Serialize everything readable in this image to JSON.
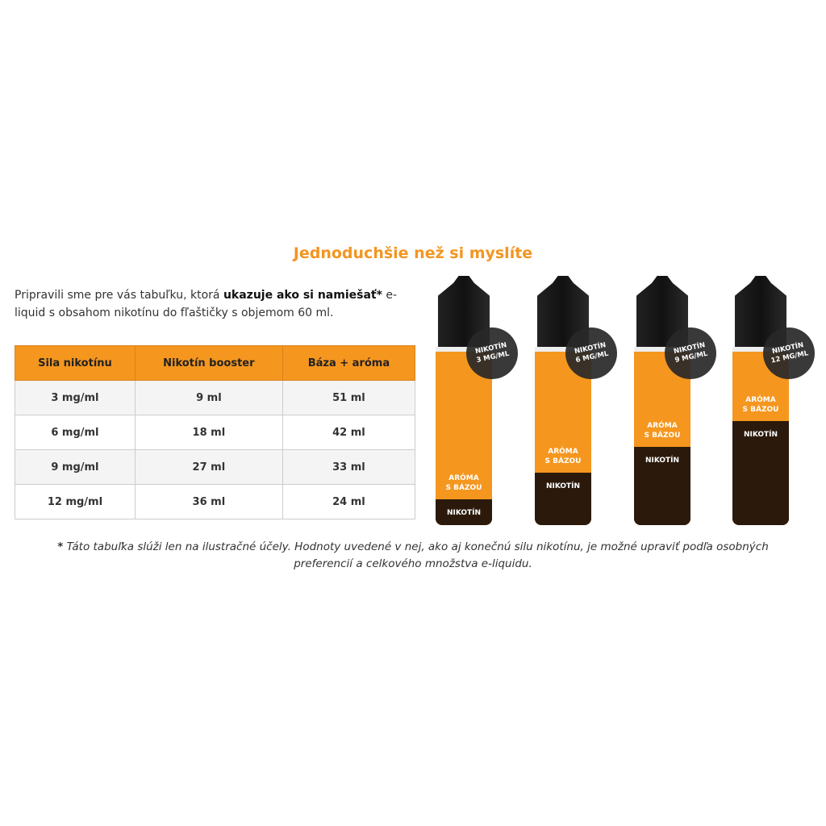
{
  "title": "Jednoduchšie než si myslíte",
  "intro": {
    "before": "Pripravili sme pre vás tabuľku, ktorá ",
    "bold": "ukazuje ako si namiešať*",
    "after": " e-liquid s obsahom nikotínu do fľaštičky s objemom 60 ml."
  },
  "table": {
    "headers": [
      "Sila nikotínu",
      "Nikotín booster",
      "Báza + aróma"
    ],
    "rows": [
      [
        "3 mg/ml",
        "9 ml",
        "51 ml"
      ],
      [
        "6 mg/ml",
        "18 ml",
        "42 ml"
      ],
      [
        "9 mg/ml",
        "27 ml",
        "33 ml"
      ],
      [
        "12 mg/ml",
        "36 ml",
        "24 ml"
      ]
    ]
  },
  "bottles": [
    {
      "badge_line1": "NIKOTÍN",
      "badge_line2": "3 MG/ML",
      "aroma_line1": "ARÓMA",
      "aroma_line2": "S BÁZOU",
      "nicotine": "NIKOTÍN",
      "nicotine_fraction": 0.15
    },
    {
      "badge_line1": "NIKOTÍN",
      "badge_line2": "6 MG/ML",
      "aroma_line1": "ARÓMA",
      "aroma_line2": "S BÁZOU",
      "nicotine": "NIKOTÍN",
      "nicotine_fraction": 0.3
    },
    {
      "badge_line1": "NIKOTÍN",
      "badge_line2": "9 MG/ML",
      "aroma_line1": "ARÓMA",
      "aroma_line2": "S BÁZOU",
      "nicotine": "NIKOTÍN",
      "nicotine_fraction": 0.45
    },
    {
      "badge_line1": "NIKOTÍN",
      "badge_line2": "12 MG/ML",
      "aroma_line1": "ARÓMA",
      "aroma_line2": "S BÁZOU",
      "nicotine": "NIKOTÍN",
      "nicotine_fraction": 0.6
    }
  ],
  "footnote": {
    "star": "*",
    "text": " Táto tabuľka slúži len na ilustračné účely. Hodnoty uvedené v nej, ako aj konečnú silu nikotínu, je možné upraviť podľa osobných preferencií a celkového množstva e-liquidu."
  },
  "colors": {
    "accent": "#f5961e",
    "dark_liquid": "#2b1a0c"
  }
}
